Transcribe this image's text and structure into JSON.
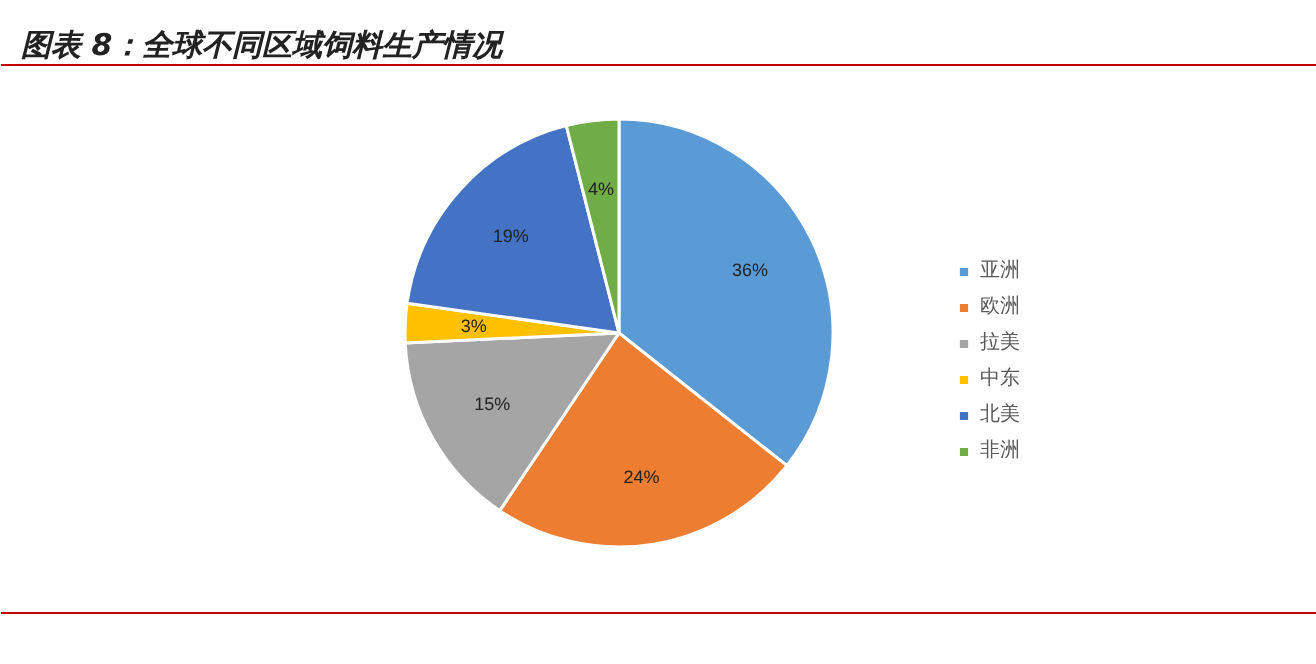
{
  "chart_data": {
    "type": "pie",
    "title": "图表 8：全球不同区域饲料生产情况",
    "categories": [
      "亚洲",
      "欧洲",
      "拉美",
      "中东",
      "北美",
      "非洲"
    ],
    "values": [
      36,
      24,
      15,
      3,
      19,
      4
    ],
    "colors": [
      "#5b9bd5",
      "#ed7d31",
      "#a5a5a5",
      "#ffc000",
      "#4472c4",
      "#70ad47"
    ],
    "value_labels": [
      "36%",
      "24%",
      "15%",
      "3%",
      "19%",
      "4%"
    ],
    "legend": "right"
  }
}
